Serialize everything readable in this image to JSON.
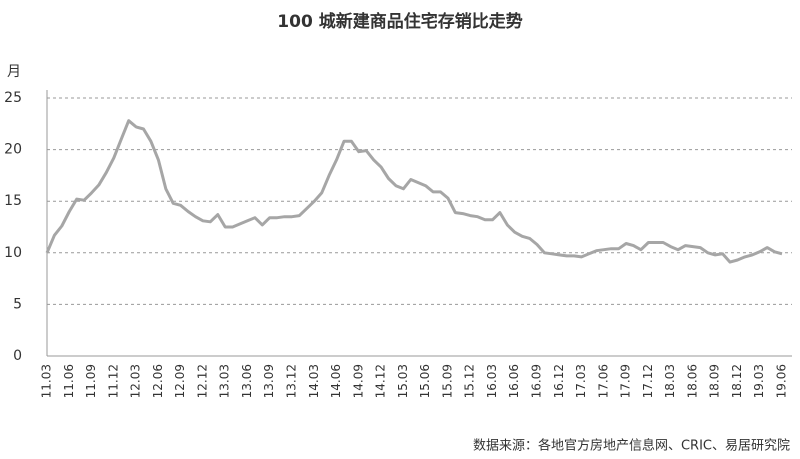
{
  "chart_data": {
    "type": "line",
    "title": "100 城新建商品住宅存销比走势",
    "y_label": "月",
    "source": "数据来源：各地官方房地产信息网、CRIC、易居研究院",
    "categories": [
      "11.03",
      null,
      null,
      "11.06",
      null,
      null,
      "11.09",
      null,
      null,
      "11.12",
      null,
      null,
      "12.03",
      null,
      null,
      "12.06",
      null,
      null,
      "12.09",
      null,
      null,
      "12.12",
      null,
      null,
      "13.03",
      null,
      null,
      "13.06",
      null,
      null,
      "13.09",
      null,
      null,
      "13.12",
      null,
      null,
      "14.03",
      null,
      null,
      "14.06",
      null,
      null,
      "14.09",
      null,
      null,
      "14.12",
      null,
      null,
      "15.03",
      null,
      null,
      "15.06",
      null,
      null,
      "15.09",
      null,
      null,
      "15.12",
      null,
      null,
      "16.03",
      null,
      null,
      "16.06",
      null,
      null,
      "16.09",
      null,
      null,
      "16.12",
      null,
      null,
      "17.03",
      null,
      null,
      "17.06",
      null,
      null,
      "17.09",
      null,
      null,
      "17.12",
      null,
      null,
      "18.03",
      null,
      null,
      "18.06",
      null,
      null,
      "18.09",
      null,
      null,
      "18.12",
      null,
      null,
      "19.03",
      null,
      null,
      "19.06"
    ],
    "series": [
      {
        "color": "#a6a6a6",
        "values": [
          10.0,
          11.7,
          12.6,
          14.0,
          15.2,
          15.1,
          15.8,
          16.6,
          17.8,
          19.2,
          21.0,
          22.8,
          22.2,
          22.0,
          20.8,
          19.0,
          16.2,
          14.8,
          14.6,
          14.0,
          13.5,
          13.1,
          13.0,
          13.7,
          12.5,
          12.5,
          12.8,
          13.1,
          13.4,
          12.7,
          13.4,
          13.4,
          13.5,
          13.5,
          13.6,
          14.3,
          15.0,
          15.8,
          17.5,
          19.0,
          20.8,
          20.8,
          19.8,
          19.9,
          19.0,
          18.3,
          17.2,
          16.5,
          16.2,
          17.1,
          16.8,
          16.5,
          15.9,
          15.9,
          15.3,
          13.9,
          13.8,
          13.6,
          13.5,
          13.2,
          13.2,
          13.9,
          12.7,
          12.0,
          11.6,
          11.4,
          10.8,
          10.0,
          9.9,
          9.8,
          9.7,
          9.7,
          9.6,
          9.9,
          10.2,
          10.3,
          10.4,
          10.4,
          10.9,
          10.7,
          10.3,
          11.0,
          11.0,
          11.0,
          10.6,
          10.3,
          10.7,
          10.6,
          10.5,
          10.0,
          9.8,
          9.9,
          9.1,
          9.3,
          9.6,
          9.8,
          10.1,
          10.5,
          10.1,
          9.9
        ]
      }
    ],
    "ylim": [
      0,
      25
    ],
    "yticks": [
      0,
      5,
      10,
      15,
      20,
      25
    ],
    "grid": true
  }
}
